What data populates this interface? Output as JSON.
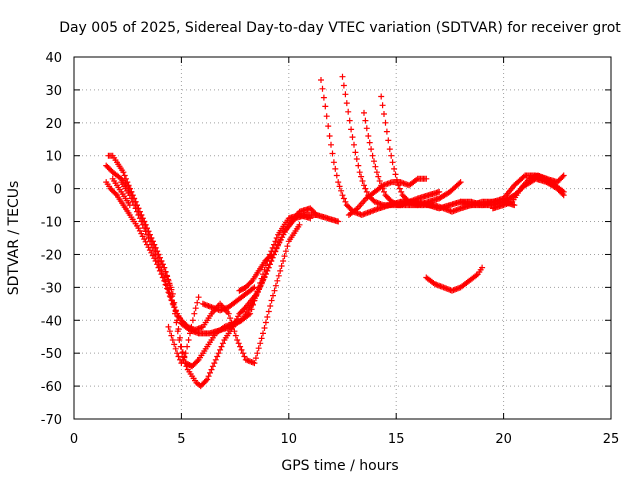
{
  "chart_data": {
    "type": "scatter",
    "title": "Day 005 of 2025, Sidereal Day-to-day VTEC variation (SDTVAR) for receiver grot",
    "xlabel": "GPS time / hours",
    "ylabel": "SDTVAR / TECUs",
    "xlim": [
      0,
      25
    ],
    "ylim": [
      -70,
      40
    ],
    "xticks": [
      0,
      5,
      10,
      15,
      20,
      25
    ],
    "yticks": [
      -70,
      -60,
      -50,
      -40,
      -30,
      -20,
      -10,
      0,
      10,
      20,
      30,
      40
    ],
    "grid": true,
    "marker": "plus",
    "color": "#ff0000",
    "series": [
      {
        "x": [
          1.5,
          1.8,
          2.2,
          2.6,
          3.0,
          3.4,
          3.8,
          4.2,
          4.5,
          4.7,
          4.9,
          5.1,
          5.3,
          5.5,
          5.7,
          5.9,
          6.2,
          6.6,
          7.0,
          7.4,
          7.7,
          8.0,
          8.5,
          9.0,
          9.5,
          10.0,
          10.5,
          11.0,
          11.3
        ],
        "y": [
          7,
          5,
          3,
          0,
          -6,
          -12,
          -18,
          -24,
          -30,
          -38,
          -46,
          -52,
          -55,
          -57,
          -59,
          -60,
          -58,
          -52,
          -46,
          -42,
          -38,
          -36,
          -32,
          -25,
          -17,
          -11,
          -7,
          -6,
          -8
        ]
      },
      {
        "x": [
          1.5,
          1.7,
          2.0,
          2.3,
          2.6,
          3.0,
          3.4,
          3.8,
          4.2,
          4.6,
          5.0,
          5.4,
          5.8,
          6.3,
          6.8,
          7.3,
          7.8,
          8.3,
          8.8,
          9.3,
          9.8,
          10.3,
          10.8,
          11.3,
          11.8,
          12.3
        ],
        "y": [
          2,
          0,
          -2,
          -5,
          -8,
          -12,
          -17,
          -22,
          -28,
          -35,
          -41,
          -43,
          -44,
          -44,
          -43,
          -42,
          -40,
          -35,
          -28,
          -20,
          -13,
          -9,
          -8,
          -8,
          -9,
          -10
        ]
      },
      {
        "x": [
          1.6,
          1.8,
          2.0,
          2.3,
          2.6,
          3.0,
          3.4,
          3.8,
          4.2,
          4.6,
          4.8,
          5.0,
          5.2,
          5.5,
          5.8,
          6.2,
          6.6,
          7.0,
          7.4,
          7.8,
          8.2,
          8.6,
          9.0,
          9.5,
          10.0,
          10.5,
          11.0
        ],
        "y": [
          10,
          10,
          8,
          5,
          0,
          -6,
          -12,
          -18,
          -24,
          -32,
          -40,
          -48,
          -53,
          -54,
          -52,
          -48,
          -44,
          -42,
          -41,
          -40,
          -38,
          -30,
          -22,
          -14,
          -9,
          -8,
          -9
        ]
      },
      {
        "x": [
          2.2,
          2.6,
          3.0,
          3.4,
          3.8,
          4.2,
          4.5,
          4.8,
          5.0,
          5.3,
          5.6,
          6.0,
          6.4,
          6.8,
          7.2,
          7.6,
          8.0,
          8.4,
          8.8,
          9.2,
          9.6,
          10.0,
          10.5
        ],
        "y": [
          2,
          -2,
          -8,
          -14,
          -20,
          -27,
          -33,
          -38,
          -40,
          -42,
          -43,
          -42,
          -38,
          -35,
          -38,
          -46,
          -52,
          -53,
          -44,
          -34,
          -25,
          -16,
          -11
        ]
      },
      {
        "x": [
          1.8,
          2.0,
          2.2,
          2.4,
          2.6
        ],
        "y": [
          3,
          1,
          -1,
          -3,
          -5
        ]
      },
      {
        "x": [
          4.4,
          4.6,
          4.8,
          5.0,
          5.2,
          5.4,
          5.6,
          5.8
        ],
        "y": [
          -42,
          -46,
          -50,
          -53,
          -50,
          -44,
          -38,
          -33
        ]
      },
      {
        "x": [
          6.0,
          6.4,
          6.8,
          7.2,
          7.6,
          8.0,
          8.4
        ],
        "y": [
          -35,
          -36,
          -37,
          -36,
          -34,
          -32,
          -30
        ]
      },
      {
        "x": [
          7.7,
          8.0,
          8.3,
          8.6,
          8.9,
          9.2
        ],
        "y": [
          -31,
          -30,
          -28,
          -25,
          -22,
          -20
        ]
      },
      {
        "x": [
          11.5,
          11.7,
          11.9,
          12.1,
          12.3,
          12.5,
          12.7,
          13.0,
          13.4,
          13.8,
          14.2,
          14.7,
          15.2,
          15.7,
          16.2
        ],
        "y": [
          33,
          25,
          16,
          8,
          2,
          -2,
          -5,
          -7,
          -8,
          -7,
          -6,
          -5,
          -4,
          -4,
          -5
        ]
      },
      {
        "x": [
          12.5,
          12.7,
          12.9,
          13.1,
          13.3,
          13.5,
          13.7,
          14.0,
          14.4,
          14.8,
          15.2,
          15.6,
          16.0,
          16.5,
          17.0
        ],
        "y": [
          34,
          26,
          18,
          11,
          5,
          1,
          -2,
          -4,
          -5,
          -5,
          -5,
          -4,
          -3,
          -2,
          -1
        ]
      },
      {
        "x": [
          13.5,
          13.7,
          13.9,
          14.1,
          14.3,
          14.5,
          14.8,
          15.1,
          15.5,
          16.0,
          16.5,
          17.0,
          17.5,
          18.0
        ],
        "y": [
          23,
          16,
          10,
          5,
          1,
          -2,
          -4,
          -5,
          -5,
          -5,
          -4,
          -3,
          -1,
          2
        ]
      },
      {
        "x": [
          14.3,
          14.5,
          14.7,
          14.9,
          15.1,
          15.3,
          15.6,
          16.0,
          16.4,
          16.8,
          17.2,
          17.6,
          18.0,
          18.5,
          19.0,
          19.5,
          20.0,
          20.5
        ],
        "y": [
          28,
          20,
          12,
          6,
          1,
          -2,
          -4,
          -5,
          -5,
          -5,
          -6,
          -7,
          -6,
          -5,
          -4,
          -4,
          -4,
          -5
        ]
      },
      {
        "x": [
          12.8,
          13.2,
          13.6,
          14.0,
          14.4,
          14.8,
          15.2,
          15.6,
          16.0,
          16.4
        ],
        "y": [
          -8,
          -6,
          -3,
          -1,
          1,
          2,
          2,
          1,
          3,
          3
        ]
      },
      {
        "x": [
          15.0,
          15.5,
          16.0,
          16.5,
          17.0,
          17.5,
          18.0,
          18.5,
          19.0,
          19.5,
          20.0,
          20.5,
          21.0,
          21.5,
          22.0,
          22.5,
          22.8
        ],
        "y": [
          -5,
          -4,
          -4,
          -5,
          -6,
          -5,
          -4,
          -4,
          -5,
          -5,
          -4,
          -2,
          1,
          3,
          2,
          0,
          -2
        ]
      },
      {
        "x": [
          18.0,
          18.5,
          19.0,
          19.5,
          20.0,
          20.5,
          21.0,
          21.5,
          22.0,
          22.5,
          22.8
        ],
        "y": [
          -4,
          -5,
          -5,
          -4,
          -3,
          1,
          4,
          4,
          3,
          2,
          4
        ]
      },
      {
        "x": [
          19.5,
          20.0,
          20.4,
          20.8,
          21.2,
          21.6,
          22.0,
          22.4,
          22.8
        ],
        "y": [
          -6,
          -5,
          -4,
          0,
          3,
          4,
          3,
          1,
          -1
        ]
      },
      {
        "x": [
          16.4,
          16.8,
          17.2,
          17.6,
          18.0,
          18.4,
          18.8,
          19.0
        ],
        "y": [
          -27,
          -29,
          -30,
          -31,
          -30,
          -28,
          -26,
          -24
        ]
      }
    ]
  }
}
